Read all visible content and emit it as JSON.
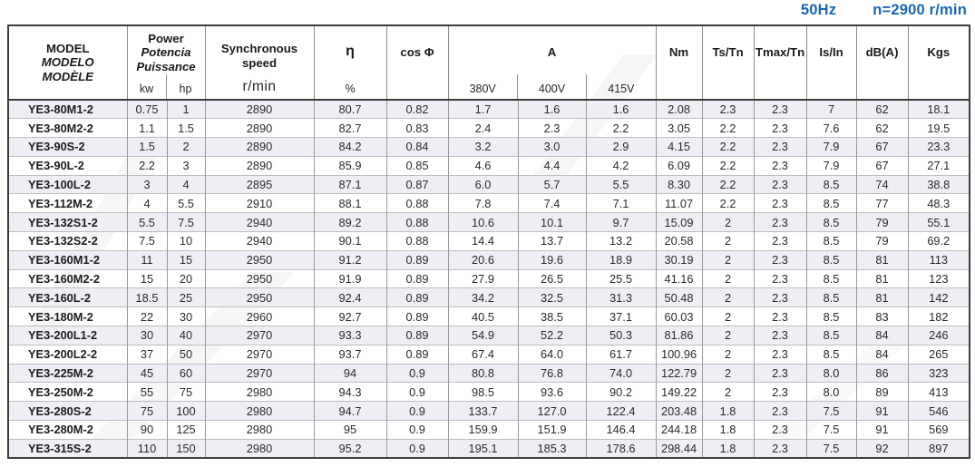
{
  "title": {
    "frequency": "50Hz",
    "speed": "n=2900 r/min"
  },
  "colors": {
    "accent_blue": "#1668b2",
    "stripe": "#edeff4"
  },
  "table": {
    "header": {
      "model_lines": [
        "MODEL",
        "MODELO",
        "MODÈLE"
      ],
      "power_lines": [
        "Power",
        "Potencia",
        "Puissance"
      ],
      "power_units": [
        "kw",
        "hp"
      ],
      "sync_lines": [
        "Synchronous",
        "speed"
      ],
      "sync_unit": "r/min",
      "eta_label": "η",
      "eta_unit": "%",
      "cos_label": "cos Φ",
      "current_label": "A",
      "current_voltages": [
        "380V",
        "400V",
        "415V"
      ],
      "nm_label": "Nm",
      "ts_tn_label": "Ts/Tn",
      "tmax_tn_label": "Tmax/Tn",
      "is_in_label": "Is/In",
      "db_label": "dB(A)",
      "kgs_label": "Kgs"
    },
    "rows": [
      [
        "YE3-80M1-2",
        "0.75",
        "1",
        "2890",
        "80.7",
        "0.82",
        "1.7",
        "1.6",
        "1.6",
        "2.08",
        "2.3",
        "2.3",
        "7",
        "62",
        "18.1"
      ],
      [
        "YE3-80M2-2",
        "1.1",
        "1.5",
        "2890",
        "82.7",
        "0.83",
        "2.4",
        "2.3",
        "2.2",
        "3.05",
        "2.2",
        "2.3",
        "7.6",
        "62",
        "19.5"
      ],
      [
        "YE3-90S-2",
        "1.5",
        "2",
        "2890",
        "84.2",
        "0.84",
        "3.2",
        "3.0",
        "2.9",
        "4.15",
        "2.2",
        "2.3",
        "7.9",
        "67",
        "23.3"
      ],
      [
        "YE3-90L-2",
        "2.2",
        "3",
        "2890",
        "85.9",
        "0.85",
        "4.6",
        "4.4",
        "4.2",
        "6.09",
        "2.2",
        "2.3",
        "7.9",
        "67",
        "27.1"
      ],
      [
        "YE3-100L-2",
        "3",
        "4",
        "2895",
        "87.1",
        "0.87",
        "6.0",
        "5.7",
        "5.5",
        "8.30",
        "2.2",
        "2.3",
        "8.5",
        "74",
        "38.8"
      ],
      [
        "YE3-112M-2",
        "4",
        "5.5",
        "2910",
        "88.1",
        "0.88",
        "7.8",
        "7.4",
        "7.1",
        "11.07",
        "2.2",
        "2.3",
        "8.5",
        "77",
        "48.3"
      ],
      [
        "YE3-132S1-2",
        "5.5",
        "7.5",
        "2940",
        "89.2",
        "0.88",
        "10.6",
        "10.1",
        "9.7",
        "15.09",
        "2",
        "2.3",
        "8.5",
        "79",
        "55.1"
      ],
      [
        "YE3-132S2-2",
        "7.5",
        "10",
        "2940",
        "90.1",
        "0.88",
        "14.4",
        "13.7",
        "13.2",
        "20.58",
        "2",
        "2.3",
        "8.5",
        "79",
        "69.2"
      ],
      [
        "YE3-160M1-2",
        "11",
        "15",
        "2950",
        "91.2",
        "0.89",
        "20.6",
        "19.6",
        "18.9",
        "30.19",
        "2",
        "2.3",
        "8.5",
        "81",
        "113"
      ],
      [
        "YE3-160M2-2",
        "15",
        "20",
        "2950",
        "91.9",
        "0.89",
        "27.9",
        "26.5",
        "25.5",
        "41.16",
        "2",
        "2.3",
        "8.5",
        "81",
        "123"
      ],
      [
        "YE3-160L-2",
        "18.5",
        "25",
        "2950",
        "92.4",
        "0.89",
        "34.2",
        "32.5",
        "31.3",
        "50.48",
        "2",
        "2.3",
        "8.5",
        "81",
        "142"
      ],
      [
        "YE3-180M-2",
        "22",
        "30",
        "2960",
        "92.7",
        "0.89",
        "40.5",
        "38.5",
        "37.1",
        "60.03",
        "2",
        "2.3",
        "8.5",
        "83",
        "182"
      ],
      [
        "YE3-200L1-2",
        "30",
        "40",
        "2970",
        "93.3",
        "0.89",
        "54.9",
        "52.2",
        "50.3",
        "81.86",
        "2",
        "2.3",
        "8.5",
        "84",
        "246"
      ],
      [
        "YE3-200L2-2",
        "37",
        "50",
        "2970",
        "93.7",
        "0.89",
        "67.4",
        "64.0",
        "61.7",
        "100.96",
        "2",
        "2.3",
        "8.5",
        "84",
        "265"
      ],
      [
        "YE3-225M-2",
        "45",
        "60",
        "2970",
        "94",
        "0.9",
        "80.8",
        "76.8",
        "74.0",
        "122.79",
        "2",
        "2.3",
        "8.0",
        "86",
        "323"
      ],
      [
        "YE3-250M-2",
        "55",
        "75",
        "2980",
        "94.3",
        "0.9",
        "98.5",
        "93.6",
        "90.2",
        "149.22",
        "2",
        "2.3",
        "8.0",
        "89",
        "413"
      ],
      [
        "YE3-280S-2",
        "75",
        "100",
        "2980",
        "94.7",
        "0.9",
        "133.7",
        "127.0",
        "122.4",
        "203.48",
        "1.8",
        "2.3",
        "7.5",
        "91",
        "546"
      ],
      [
        "YE3-280M-2",
        "90",
        "125",
        "2980",
        "95",
        "0.9",
        "159.9",
        "151.9",
        "146.4",
        "244.18",
        "1.8",
        "2.3",
        "7.5",
        "91",
        "569"
      ],
      [
        "YE3-315S-2",
        "110",
        "150",
        "2980",
        "95.2",
        "0.9",
        "195.1",
        "185.3",
        "178.6",
        "298.44",
        "1.8",
        "2.3",
        "7.5",
        "92",
        "897"
      ]
    ]
  }
}
